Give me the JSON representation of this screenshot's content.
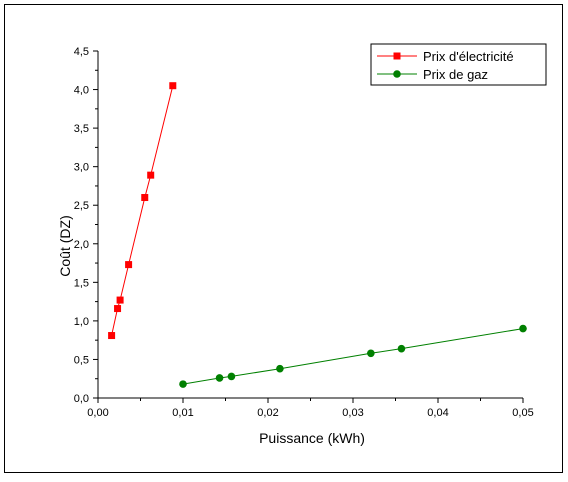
{
  "chart_data": {
    "type": "line",
    "title": "",
    "xlabel": "Puissance (kWh)",
    "ylabel": "Coût (DZ)",
    "xlim": [
      0.0,
      0.05
    ],
    "ylim": [
      0.0,
      4.5
    ],
    "xticks": [
      "0,00",
      "0,01",
      "0,02",
      "0,03",
      "0,04",
      "0,05"
    ],
    "xtick_values": [
      0.0,
      0.01,
      0.02,
      0.03,
      0.04,
      0.05
    ],
    "yticks": [
      "0,0",
      "0,5",
      "1,0",
      "1,5",
      "2,0",
      "2,5",
      "3,0",
      "3,5",
      "4,0",
      "4,5"
    ],
    "ytick_values": [
      0.0,
      0.5,
      1.0,
      1.5,
      2.0,
      2.5,
      3.0,
      3.5,
      4.0,
      4.5
    ],
    "grid": false,
    "legend_position": "top-right",
    "series": [
      {
        "name": "Prix d'électricité",
        "color": "#ff0000",
        "marker": "square",
        "x": [
          0.0016,
          0.0023,
          0.0026,
          0.0036,
          0.0055,
          0.0062,
          0.0088
        ],
        "y": [
          0.81,
          1.16,
          1.27,
          1.73,
          2.6,
          2.89,
          4.05
        ]
      },
      {
        "name": "Prix de gaz",
        "color": "#008000",
        "marker": "circle",
        "x": [
          0.01,
          0.0143,
          0.0157,
          0.0214,
          0.0321,
          0.0357,
          0.05
        ],
        "y": [
          0.18,
          0.26,
          0.28,
          0.38,
          0.58,
          0.64,
          0.9
        ]
      }
    ]
  }
}
